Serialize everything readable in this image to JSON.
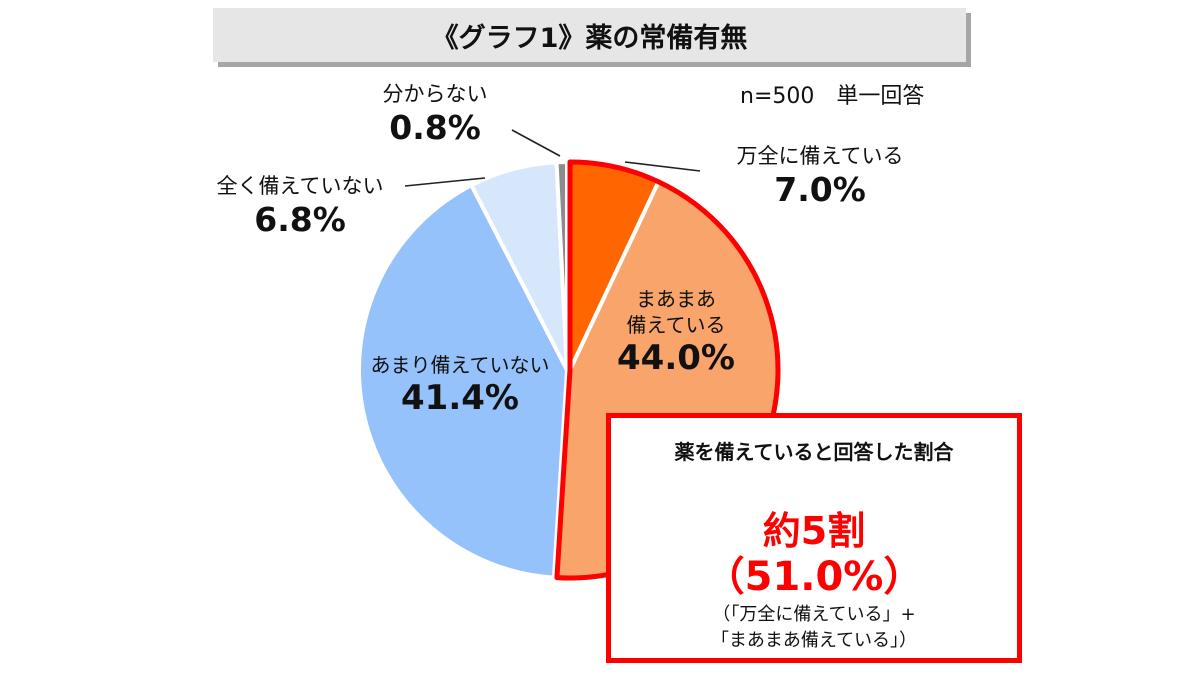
{
  "title": "《グラフ1》薬の常備有無",
  "note": "n=500　単一回答",
  "chart_data": {
    "type": "pie",
    "start": "top",
    "direction": "clockwise",
    "slices": [
      {
        "name": "万全に備えている",
        "value": 7.0,
        "label": "7.0%",
        "color": "#ff6600"
      },
      {
        "name": "まあまあ備えている",
        "value": 44.0,
        "label": "44.0%",
        "color": "#f8a46a"
      },
      {
        "name": "あまり備えていない",
        "value": 41.4,
        "label": "41.4%",
        "color": "#95c2fb"
      },
      {
        "name": "全く備えていない",
        "value": 6.8,
        "label": "6.8%",
        "color": "#d7e7fb"
      },
      {
        "name": "分からない",
        "value": 0.8,
        "label": "0.8%",
        "color": "#8c8c8c"
      }
    ],
    "highlight_outline_color": "#ff0000"
  },
  "inside_label_lines": [
    "まあまあ",
    "備えている"
  ],
  "callout": {
    "heading": "薬を備えていると回答した割合",
    "headline": "約5割",
    "value": "（51.0%）",
    "footnote_line1": "（「万全に備えている」+",
    "footnote_line2": "「まあまあ備えている」）"
  }
}
